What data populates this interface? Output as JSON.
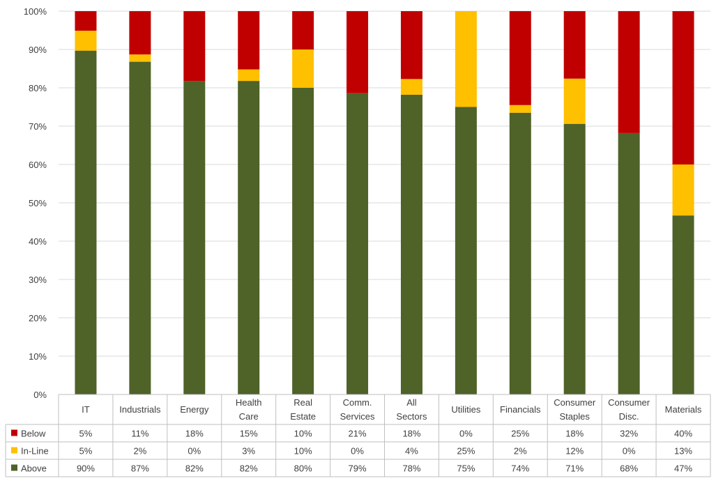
{
  "chart_data": {
    "type": "bar",
    "stacked": true,
    "percent_stacked": true,
    "categories": [
      [
        "IT"
      ],
      [
        "Industrials"
      ],
      [
        "Energy"
      ],
      [
        "Health",
        "Care"
      ],
      [
        "Real",
        "Estate"
      ],
      [
        "Comm.",
        "Services"
      ],
      [
        "All",
        "Sectors"
      ],
      [
        "Utilities"
      ],
      [
        "Financials"
      ],
      [
        "Consumer",
        "Staples"
      ],
      [
        "Consumer",
        "Disc."
      ],
      [
        "Materials"
      ]
    ],
    "series": [
      {
        "name": "Above",
        "color": "#4f6228",
        "values": [
          89.7,
          86.8,
          81.8,
          81.8,
          80.0,
          78.6,
          78.2,
          75.0,
          73.5,
          70.6,
          68.2,
          46.7
        ],
        "labels": [
          "90%",
          "87%",
          "82%",
          "82%",
          "80%",
          "79%",
          "78%",
          "75%",
          "74%",
          "71%",
          "68%",
          "47%"
        ]
      },
      {
        "name": "In-Line",
        "color": "#ffc000",
        "values": [
          5.2,
          1.9,
          0.0,
          3.0,
          10.0,
          0.0,
          4.1,
          25.0,
          2.0,
          11.8,
          0.0,
          13.3
        ],
        "labels": [
          "5%",
          "2%",
          "0%",
          "3%",
          "10%",
          "0%",
          "4%",
          "25%",
          "2%",
          "12%",
          "0%",
          "13%"
        ]
      },
      {
        "name": "Below",
        "color": "#c00000",
        "values": [
          5.1,
          11.3,
          18.2,
          15.2,
          10.0,
          21.4,
          17.7,
          0.0,
          24.5,
          17.6,
          31.8,
          40.0
        ],
        "labels": [
          "5%",
          "11%",
          "18%",
          "15%",
          "10%",
          "21%",
          "18%",
          "0%",
          "25%",
          "18%",
          "32%",
          "40%"
        ]
      }
    ],
    "table_row_order": [
      "Below",
      "In-Line",
      "Above"
    ],
    "yticks": [
      "0%",
      "10%",
      "20%",
      "30%",
      "40%",
      "50%",
      "60%",
      "70%",
      "80%",
      "90%",
      "100%"
    ],
    "ylim": [
      0,
      100
    ],
    "grid": true,
    "legend": "data-table"
  }
}
